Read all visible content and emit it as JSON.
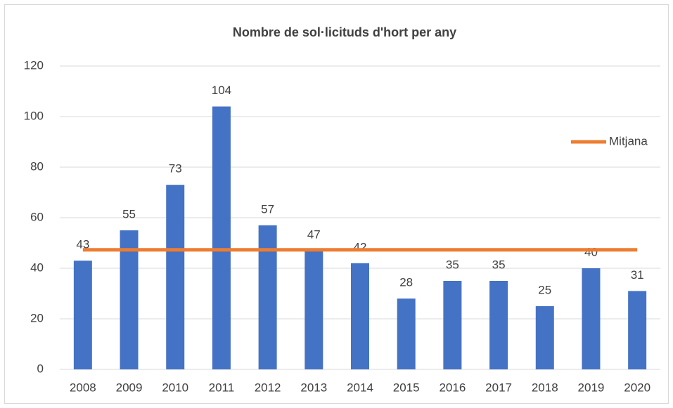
{
  "chart_data": {
    "type": "bar",
    "title": "Nombre de sol·licituds d'hort per any",
    "categories": [
      "2008",
      "2009",
      "2010",
      "2011",
      "2012",
      "2013",
      "2014",
      "2015",
      "2016",
      "2017",
      "2018",
      "2019",
      "2020"
    ],
    "series": [
      {
        "type": "bar",
        "color": "#4472c4",
        "values": [
          43,
          55,
          73,
          104,
          57,
          47,
          42,
          28,
          35,
          35,
          25,
          40,
          31
        ]
      },
      {
        "type": "line",
        "name": "Mitjana",
        "color": "#ed7d31",
        "values": [
          47.3,
          47.3,
          47.3,
          47.3,
          47.3,
          47.3,
          47.3,
          47.3,
          47.3,
          47.3,
          47.3,
          47.3,
          47.3
        ]
      }
    ],
    "ylim": [
      0,
      120
    ],
    "yticks": [
      0,
      20,
      40,
      60,
      80,
      100,
      120
    ],
    "grid": true,
    "legend": "right"
  }
}
